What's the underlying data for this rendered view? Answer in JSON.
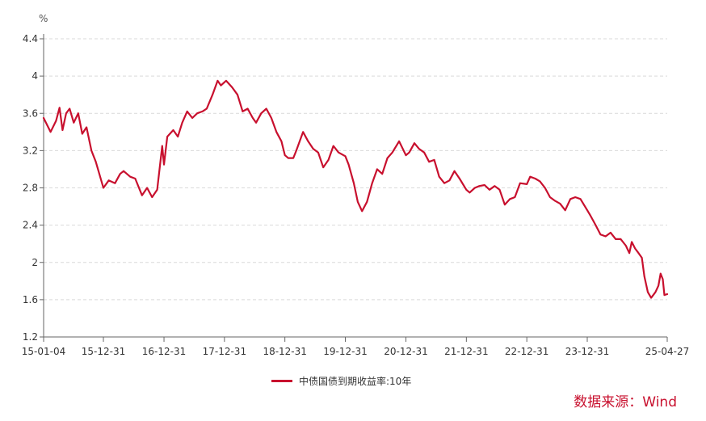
{
  "colors": {
    "series": "#c8102e",
    "source": "#c8102e",
    "grid": "#d9d9d9",
    "axis": "#666666"
  },
  "source_note": "数据来源：Wind",
  "chart_data": {
    "type": "line",
    "title": "",
    "ylabel": "%",
    "xlabel": "",
    "ylim": [
      1.2,
      4.4
    ],
    "yticks": [
      1.2,
      1.6,
      2,
      2.4,
      2.8,
      3.2,
      3.6,
      4,
      4.4
    ],
    "ytick_labels": [
      "1.2",
      "1.6",
      "2",
      "2.4",
      "2.8",
      "3.2",
      "3.6",
      "4",
      "4.4"
    ],
    "xlim": [
      "2015-01-04",
      "2025-04-27"
    ],
    "xticks": [
      "2015-01-04",
      "2015-12-31",
      "2016-12-31",
      "2017-12-31",
      "2018-12-31",
      "2019-12-31",
      "2020-12-31",
      "2021-12-31",
      "2022-12-31",
      "2023-12-31",
      "2025-04-27"
    ],
    "xtick_labels": [
      "15-01-04",
      "15-12-31",
      "16-12-31",
      "17-12-31",
      "18-12-31",
      "19-12-31",
      "20-12-31",
      "21-12-31",
      "22-12-31",
      "23-12-31",
      "25-04-27"
    ],
    "grid": "horizontal dashed",
    "legend_position": "bottom-center",
    "series": [
      {
        "name": "中债国债到期收益率:10年",
        "points": [
          [
            "2015-01-04",
            3.55
          ],
          [
            "2015-02-15",
            3.4
          ],
          [
            "2015-03-20",
            3.52
          ],
          [
            "2015-04-10",
            3.66
          ],
          [
            "2015-04-28",
            3.42
          ],
          [
            "2015-05-20",
            3.6
          ],
          [
            "2015-06-10",
            3.65
          ],
          [
            "2015-07-05",
            3.5
          ],
          [
            "2015-08-01",
            3.6
          ],
          [
            "2015-08-25",
            3.38
          ],
          [
            "2015-09-20",
            3.45
          ],
          [
            "2015-10-20",
            3.2
          ],
          [
            "2015-11-15",
            3.08
          ],
          [
            "2015-12-31",
            2.8
          ],
          [
            "2016-02-01",
            2.88
          ],
          [
            "2016-03-10",
            2.85
          ],
          [
            "2016-04-10",
            2.95
          ],
          [
            "2016-05-01",
            2.98
          ],
          [
            "2016-06-10",
            2.92
          ],
          [
            "2016-07-10",
            2.9
          ],
          [
            "2016-08-20",
            2.72
          ],
          [
            "2016-09-20",
            2.8
          ],
          [
            "2016-10-20",
            2.7
          ],
          [
            "2016-11-20",
            2.78
          ],
          [
            "2016-12-20",
            3.25
          ],
          [
            "2016-12-31",
            3.05
          ],
          [
            "2017-01-20",
            3.35
          ],
          [
            "2017-02-25",
            3.42
          ],
          [
            "2017-03-25",
            3.35
          ],
          [
            "2017-04-20",
            3.5
          ],
          [
            "2017-05-20",
            3.62
          ],
          [
            "2017-06-20",
            3.55
          ],
          [
            "2017-07-20",
            3.6
          ],
          [
            "2017-08-20",
            3.62
          ],
          [
            "2017-09-15",
            3.65
          ],
          [
            "2017-10-20",
            3.8
          ],
          [
            "2017-11-20",
            3.95
          ],
          [
            "2017-12-10",
            3.9
          ],
          [
            "2018-01-10",
            3.95
          ],
          [
            "2018-02-15",
            3.88
          ],
          [
            "2018-03-20",
            3.8
          ],
          [
            "2018-04-20",
            3.62
          ],
          [
            "2018-05-20",
            3.65
          ],
          [
            "2018-06-20",
            3.55
          ],
          [
            "2018-07-10",
            3.5
          ],
          [
            "2018-08-10",
            3.6
          ],
          [
            "2018-09-10",
            3.65
          ],
          [
            "2018-10-10",
            3.55
          ],
          [
            "2018-11-10",
            3.4
          ],
          [
            "2018-12-10",
            3.3
          ],
          [
            "2018-12-31",
            3.15
          ],
          [
            "2019-01-20",
            3.12
          ],
          [
            "2019-02-20",
            3.12
          ],
          [
            "2019-03-10",
            3.2
          ],
          [
            "2019-04-20",
            3.4
          ],
          [
            "2019-05-20",
            3.3
          ],
          [
            "2019-06-20",
            3.22
          ],
          [
            "2019-07-20",
            3.18
          ],
          [
            "2019-08-20",
            3.02
          ],
          [
            "2019-09-20",
            3.1
          ],
          [
            "2019-10-20",
            3.25
          ],
          [
            "2019-11-20",
            3.18
          ],
          [
            "2019-12-31",
            3.14
          ],
          [
            "2020-01-20",
            3.05
          ],
          [
            "2020-02-20",
            2.85
          ],
          [
            "2020-03-15",
            2.65
          ],
          [
            "2020-04-10",
            2.55
          ],
          [
            "2020-05-10",
            2.65
          ],
          [
            "2020-06-10",
            2.85
          ],
          [
            "2020-07-10",
            3.0
          ],
          [
            "2020-08-10",
            2.95
          ],
          [
            "2020-09-10",
            3.12
          ],
          [
            "2020-10-10",
            3.18
          ],
          [
            "2020-11-20",
            3.3
          ],
          [
            "2020-12-31",
            3.15
          ],
          [
            "2021-01-20",
            3.18
          ],
          [
            "2021-02-20",
            3.28
          ],
          [
            "2021-03-20",
            3.22
          ],
          [
            "2021-04-20",
            3.18
          ],
          [
            "2021-05-20",
            3.08
          ],
          [
            "2021-06-20",
            3.1
          ],
          [
            "2021-07-20",
            2.92
          ],
          [
            "2021-08-20",
            2.85
          ],
          [
            "2021-09-20",
            2.88
          ],
          [
            "2021-10-20",
            2.98
          ],
          [
            "2021-11-20",
            2.9
          ],
          [
            "2021-12-31",
            2.78
          ],
          [
            "2022-01-20",
            2.75
          ],
          [
            "2022-02-20",
            2.8
          ],
          [
            "2022-03-20",
            2.82
          ],
          [
            "2022-04-20",
            2.83
          ],
          [
            "2022-05-20",
            2.78
          ],
          [
            "2022-06-20",
            2.82
          ],
          [
            "2022-07-20",
            2.78
          ],
          [
            "2022-08-20",
            2.62
          ],
          [
            "2022-09-20",
            2.68
          ],
          [
            "2022-10-20",
            2.7
          ],
          [
            "2022-11-20",
            2.85
          ],
          [
            "2022-12-31",
            2.84
          ],
          [
            "2023-01-20",
            2.92
          ],
          [
            "2023-02-20",
            2.9
          ],
          [
            "2023-03-20",
            2.87
          ],
          [
            "2023-04-20",
            2.8
          ],
          [
            "2023-05-20",
            2.7
          ],
          [
            "2023-06-20",
            2.66
          ],
          [
            "2023-07-20",
            2.63
          ],
          [
            "2023-08-20",
            2.56
          ],
          [
            "2023-09-20",
            2.68
          ],
          [
            "2023-10-20",
            2.7
          ],
          [
            "2023-11-20",
            2.68
          ],
          [
            "2023-12-31",
            2.56
          ],
          [
            "2024-01-20",
            2.5
          ],
          [
            "2024-02-20",
            2.4
          ],
          [
            "2024-03-20",
            2.3
          ],
          [
            "2024-04-20",
            2.28
          ],
          [
            "2024-05-20",
            2.32
          ],
          [
            "2024-06-20",
            2.25
          ],
          [
            "2024-07-20",
            2.25
          ],
          [
            "2024-08-20",
            2.18
          ],
          [
            "2024-09-10",
            2.1
          ],
          [
            "2024-09-25",
            2.22
          ],
          [
            "2024-10-15",
            2.15
          ],
          [
            "2024-11-05",
            2.1
          ],
          [
            "2024-11-25",
            2.05
          ],
          [
            "2024-12-10",
            1.85
          ],
          [
            "2024-12-31",
            1.68
          ],
          [
            "2025-01-20",
            1.62
          ],
          [
            "2025-02-15",
            1.68
          ],
          [
            "2025-03-05",
            1.75
          ],
          [
            "2025-03-18",
            1.88
          ],
          [
            "2025-03-31",
            1.82
          ],
          [
            "2025-04-10",
            1.65
          ],
          [
            "2025-04-27",
            1.66
          ]
        ]
      }
    ]
  }
}
